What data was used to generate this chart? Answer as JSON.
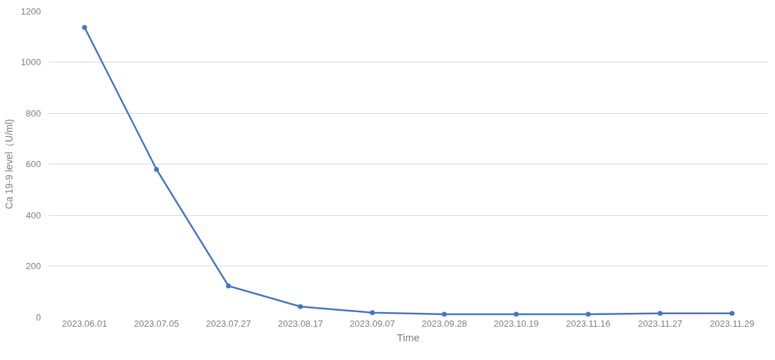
{
  "chart_data": {
    "type": "line",
    "xlabel": "Time",
    "ylabel": "Ca 19-9 level（U/ml)",
    "categories": [
      "2023.06.01",
      "2023.07.05",
      "2023.07.27",
      "2023.08.17",
      "2023.09.07",
      "2023.09.28",
      "2023.10.19",
      "2023.11.16",
      "2023.11.27",
      "2023.11.29"
    ],
    "series": [
      {
        "color": "#4472c4",
        "values": [
          1136,
          579,
          122,
          41,
          17,
          11,
          11,
          11,
          14,
          14
        ]
      }
    ],
    "ylim": [
      0,
      1200
    ],
    "yticks": [
      0,
      200,
      400,
      600,
      800,
      1000,
      1200
    ],
    "grid": "y",
    "marker": "circle",
    "line_style": "solid"
  }
}
